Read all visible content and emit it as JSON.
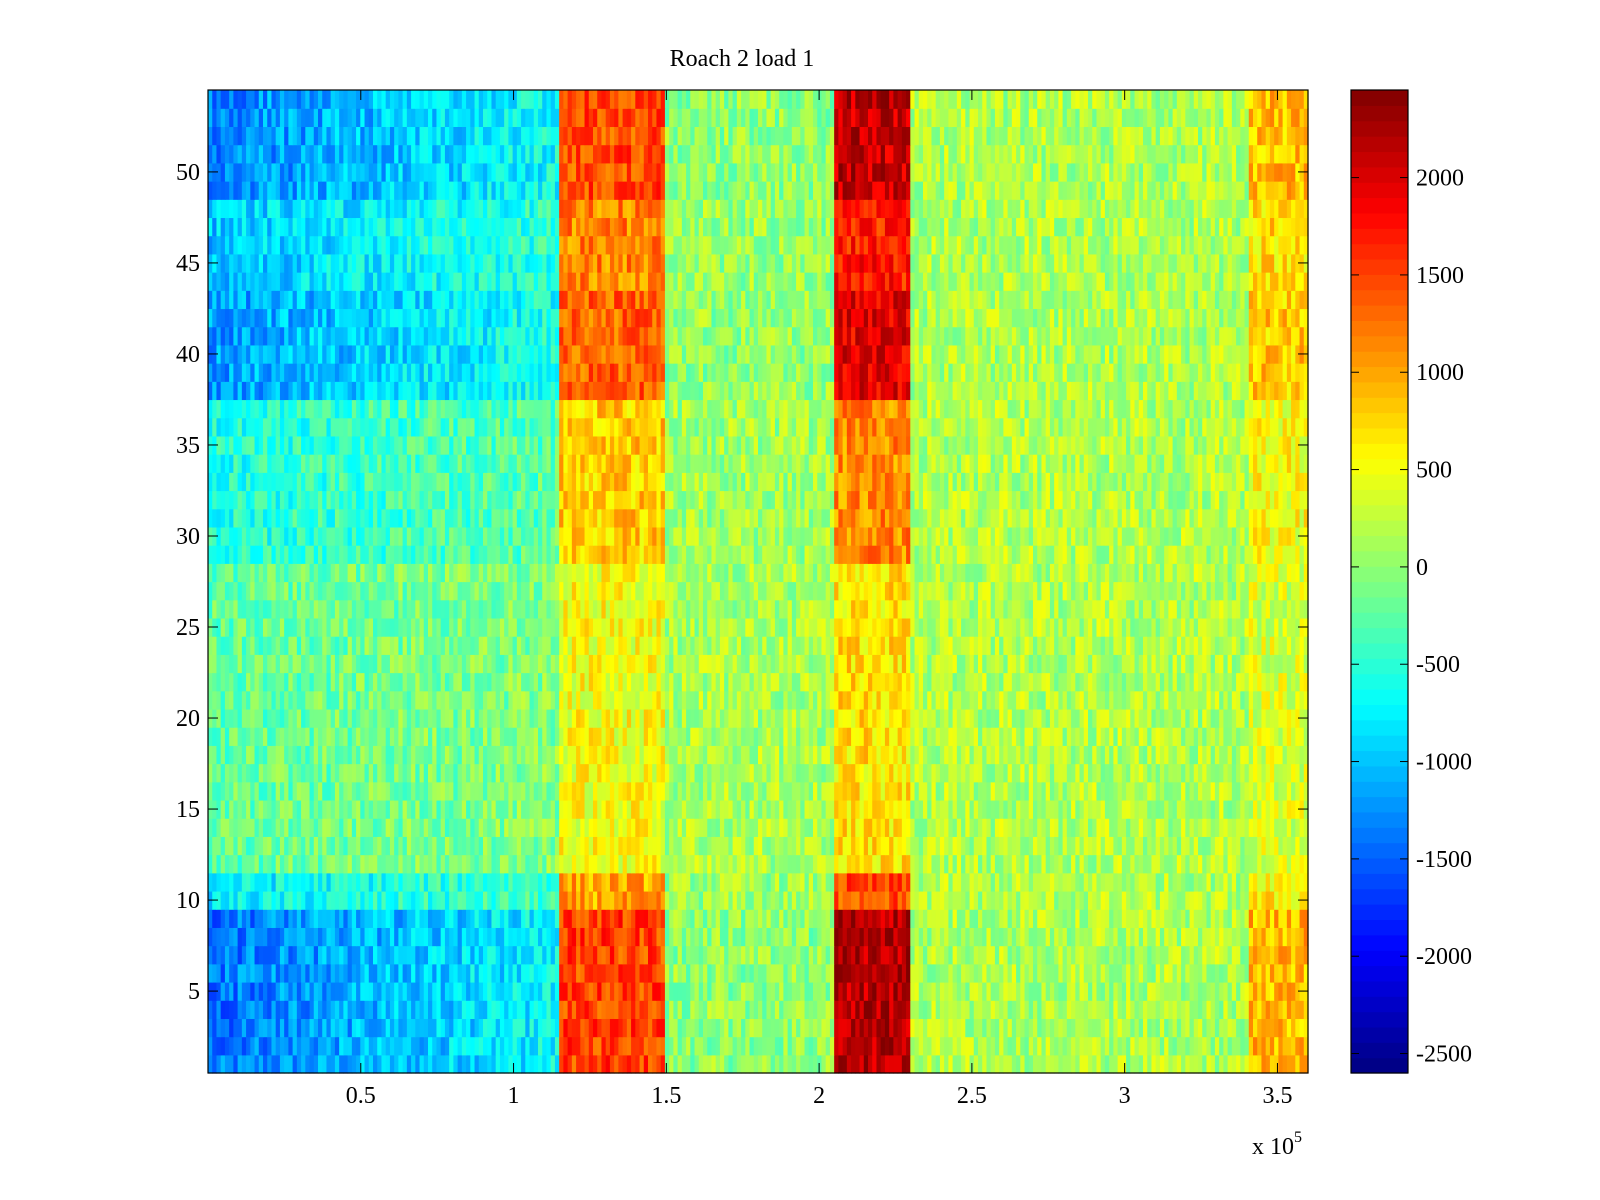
{
  "chart_data": {
    "type": "heatmap",
    "title": "Roach 2 load 1",
    "xlabel": "",
    "ylabel": "",
    "x_exponent_label": {
      "prefix": "x 10",
      "exponent": "5"
    },
    "xlim": [
      0,
      360000
    ],
    "ylim": [
      0.5,
      54.5
    ],
    "x_ticks": [
      {
        "value": 50000,
        "label": "0.5"
      },
      {
        "value": 100000,
        "label": "1"
      },
      {
        "value": 150000,
        "label": "1.5"
      },
      {
        "value": 200000,
        "label": "2"
      },
      {
        "value": 250000,
        "label": "2.5"
      },
      {
        "value": 300000,
        "label": "3"
      },
      {
        "value": 350000,
        "label": "3.5"
      }
    ],
    "y_ticks": [
      {
        "value": 5,
        "label": "5"
      },
      {
        "value": 10,
        "label": "10"
      },
      {
        "value": 15,
        "label": "15"
      },
      {
        "value": 20,
        "label": "20"
      },
      {
        "value": 25,
        "label": "25"
      },
      {
        "value": 30,
        "label": "30"
      },
      {
        "value": 35,
        "label": "35"
      },
      {
        "value": 40,
        "label": "40"
      },
      {
        "value": 45,
        "label": "45"
      },
      {
        "value": 50,
        "label": "50"
      }
    ],
    "colorbar": {
      "colormap": "jet",
      "clim": [
        -2600,
        2450
      ],
      "ticks": [
        {
          "value": 2000,
          "label": "2000"
        },
        {
          "value": 1500,
          "label": "1500"
        },
        {
          "value": 1000,
          "label": "1000"
        },
        {
          "value": 500,
          "label": "500"
        },
        {
          "value": 0,
          "label": "0"
        },
        {
          "value": -500,
          "label": "-500"
        },
        {
          "value": -1000,
          "label": "-1000"
        },
        {
          "value": -1500,
          "label": "-1500"
        },
        {
          "value": -2000,
          "label": "-2000"
        },
        {
          "value": -2500,
          "label": "-2500"
        }
      ]
    },
    "rows": 54,
    "grid": false,
    "x_segments": [
      {
        "x0": 0,
        "x1": 95000,
        "value": -1200
      },
      {
        "x0": 95000,
        "x1": 115000,
        "value": -700
      },
      {
        "x0": 115000,
        "x1": 150000,
        "value": 1500
      },
      {
        "x0": 150000,
        "x1": 205000,
        "value": 0
      },
      {
        "x0": 205000,
        "x1": 230000,
        "value": 2200
      },
      {
        "x0": 230000,
        "x1": 340000,
        "value": 150
      },
      {
        "x0": 340000,
        "x1": 360000,
        "value": 900
      }
    ],
    "row_bands": [
      {
        "rows": [
          1,
          9
        ],
        "intensity": 1.0
      },
      {
        "rows": [
          10,
          11
        ],
        "intensity": 0.55
      },
      {
        "rows": [
          12,
          28
        ],
        "intensity": 0.12
      },
      {
        "rows": [
          29,
          37
        ],
        "intensity": 0.38
      },
      {
        "rows": [
          38,
          43
        ],
        "intensity": 0.85
      },
      {
        "rows": [
          44,
          48
        ],
        "intensity": 0.7
      },
      {
        "rows": [
          49,
          54
        ],
        "intensity": 0.95
      }
    ]
  }
}
